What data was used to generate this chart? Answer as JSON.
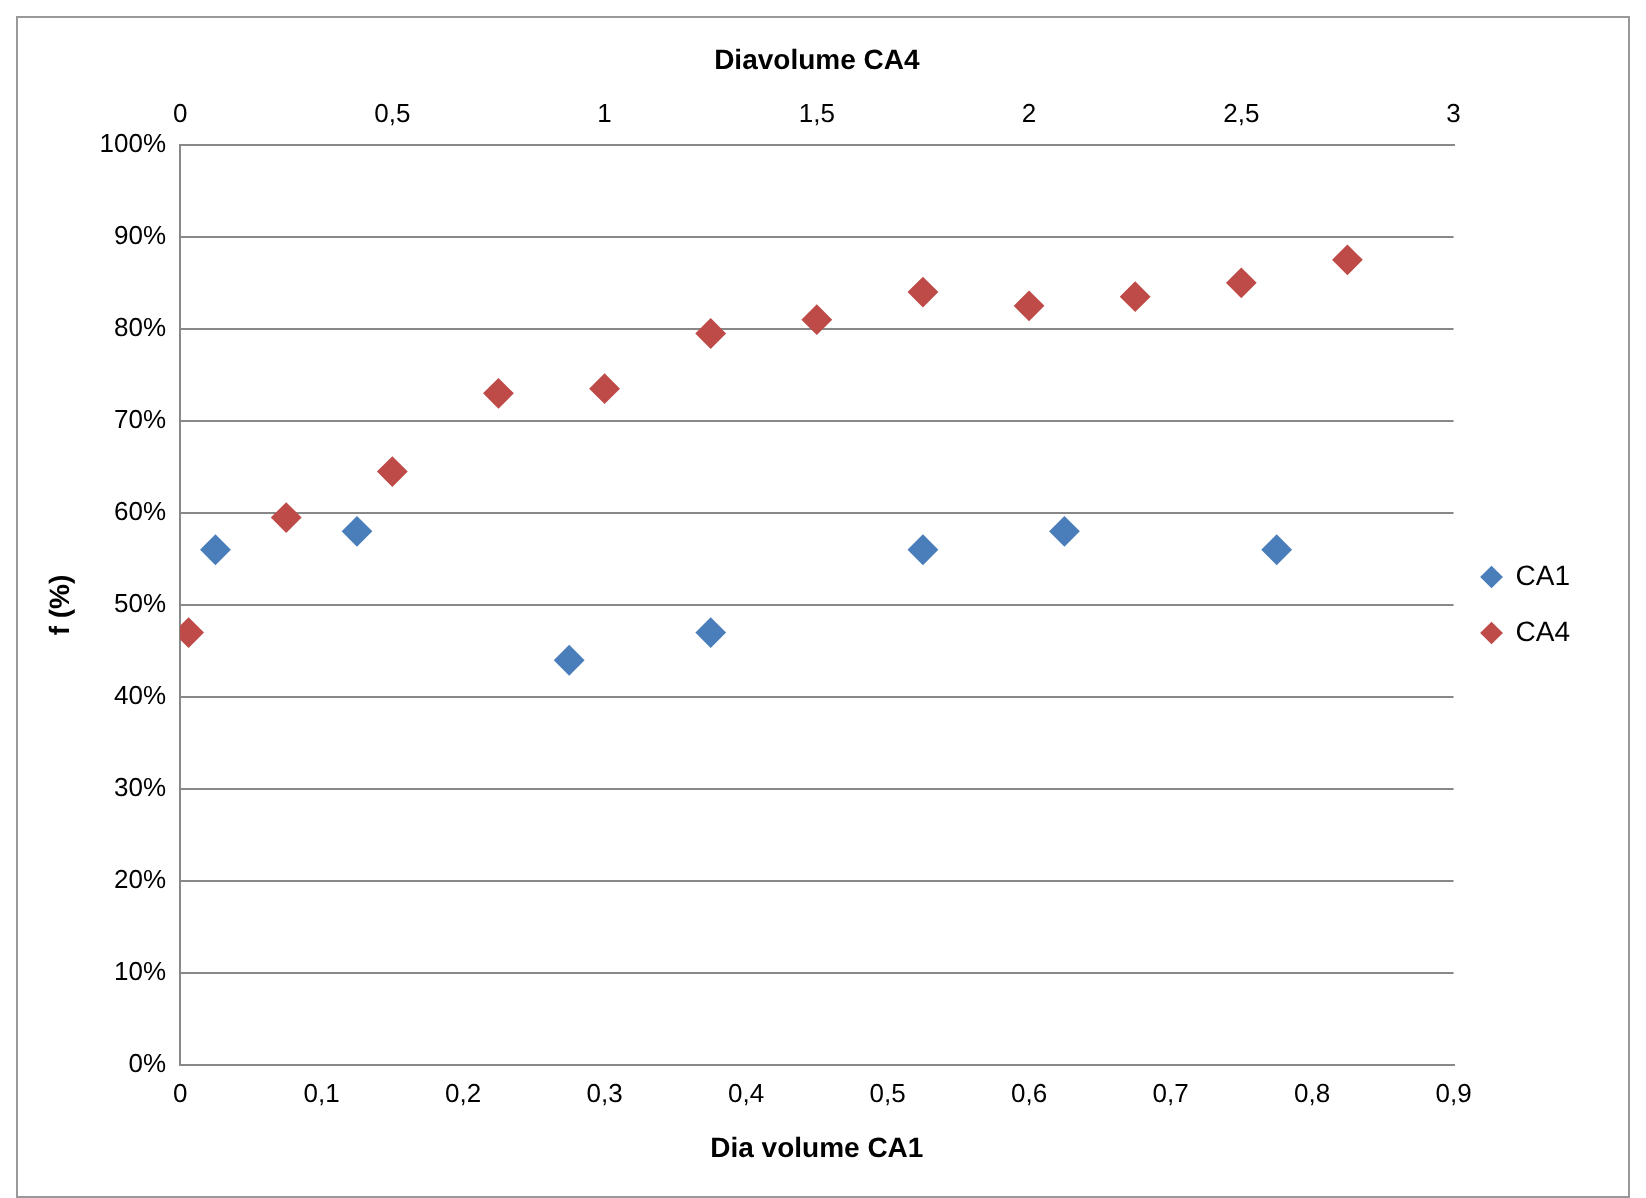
{
  "chart_data": {
    "type": "scatter",
    "xlabel": "Dia volume CA1",
    "x2label": "Diavolume CA4",
    "ylabel": "f (%)",
    "xlim": [
      0,
      0.9
    ],
    "xticks": [
      0,
      {
        "value": 0.1,
        "label": "0,1"
      },
      {
        "value": 0.2,
        "label": "0,2"
      },
      {
        "value": 0.3,
        "label": "0,3"
      },
      {
        "value": 0.4,
        "label": "0,4"
      },
      {
        "value": 0.5,
        "label": "0,5"
      },
      {
        "value": 0.6,
        "label": "0,6"
      },
      {
        "value": 0.7,
        "label": "0,7"
      },
      {
        "value": 0.8,
        "label": "0,8"
      },
      {
        "value": 0.9,
        "label": "0,9"
      }
    ],
    "x2lim": [
      0,
      3
    ],
    "x2ticks": [
      0,
      {
        "value": 0.5,
        "label": "0,5"
      },
      1,
      {
        "value": 1.5,
        "label": "1,5"
      },
      2,
      {
        "value": 2.5,
        "label": "2,5"
      },
      3
    ],
    "ylim": [
      0,
      100
    ],
    "yticks": [
      {
        "value": 0,
        "label": "0%"
      },
      {
        "value": 10,
        "label": "10%"
      },
      {
        "value": 20,
        "label": "20%"
      },
      {
        "value": 30,
        "label": "30%"
      },
      {
        "value": 40,
        "label": "40%"
      },
      {
        "value": 50,
        "label": "50%"
      },
      {
        "value": 60,
        "label": "60%"
      },
      {
        "value": 70,
        "label": "70%"
      },
      {
        "value": 80,
        "label": "80%"
      },
      {
        "value": 90,
        "label": "90%"
      },
      {
        "value": 100,
        "label": "100%"
      }
    ],
    "grid": "y",
    "legend": "right",
    "marker": "diamond",
    "series": [
      {
        "name": "CA1",
        "color": "#4a7ebb",
        "x": [
          0.025,
          0.125,
          0.275,
          0.375,
          0.525,
          0.625,
          0.775
        ],
        "values": [
          56,
          58,
          44,
          47,
          56,
          58,
          56
        ]
      },
      {
        "name": "CA4",
        "color": "#be4b48",
        "axis": "x2",
        "x": [
          0.02,
          0.25,
          0.5,
          0.75,
          1,
          1.25,
          1.5,
          1.75,
          2,
          2.25,
          2.5,
          2.75
        ],
        "values": [
          47,
          59.5,
          64.5,
          73,
          73.5,
          79.5,
          81,
          84,
          82.5,
          83.5,
          85,
          87.5
        ]
      }
    ]
  }
}
